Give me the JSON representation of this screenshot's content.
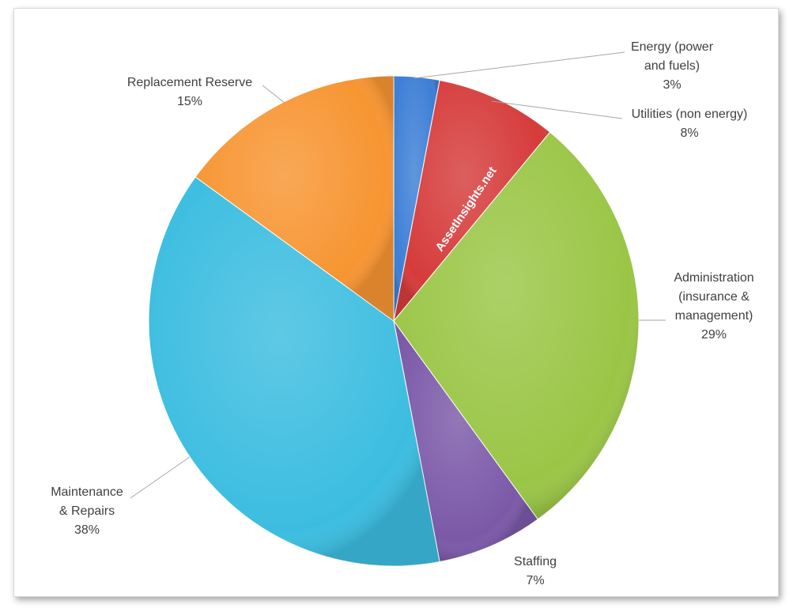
{
  "chart_data": {
    "type": "pie",
    "categories": [
      "Energy (power and fuels)",
      "Utilities (non energy)",
      "Administration (insurance & management)",
      "Staffing",
      "Maintenance & Repairs",
      "Replacement Reserve"
    ],
    "values": [
      3,
      8,
      29,
      7,
      38,
      15
    ],
    "value_labels": [
      "3%",
      "8%",
      "29%",
      "7%",
      "38%",
      "15%"
    ],
    "colors": [
      "#3d7fd6",
      "#d63b3b",
      "#9ac646",
      "#7b59a8",
      "#3cbde0",
      "#f79532"
    ],
    "watermark": "AssetInsights.net"
  }
}
